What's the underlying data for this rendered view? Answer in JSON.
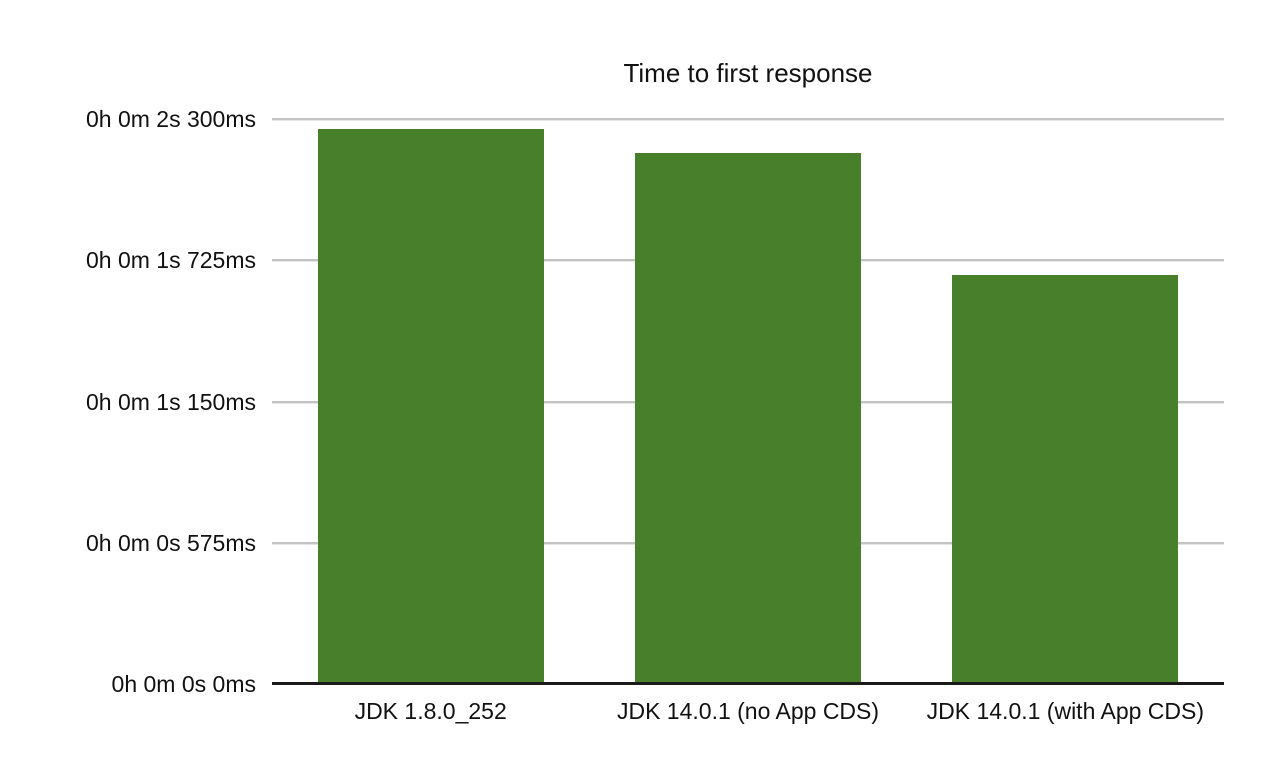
{
  "chart_data": {
    "type": "bar",
    "title": "Time to first response",
    "categories": [
      "JDK 1.8.0_252",
      "JDK 14.0.1 (no App CDS)",
      "JDK 14.0.1 (with App CDS)"
    ],
    "series": [
      {
        "name": "Time to first response",
        "values_ms": [
          2260,
          2160,
          1665
        ]
      }
    ],
    "y_ticks": [
      {
        "value_ms": 0,
        "label": "0h 0m 0s 0ms"
      },
      {
        "value_ms": 575,
        "label": "0h 0m 0s 575ms"
      },
      {
        "value_ms": 1150,
        "label": "0h 0m 1s 150ms"
      },
      {
        "value_ms": 1725,
        "label": "0h 0m 1s 725ms"
      },
      {
        "value_ms": 2300,
        "label": "0h 0m 2s 300ms"
      }
    ],
    "ylim_ms": [
      0,
      2300
    ],
    "xlabel": "",
    "ylabel": "",
    "grid": "horizontal",
    "legend": "none",
    "colors": {
      "bar": "#487f2a",
      "gridline": "#c4c4c4",
      "axis_line": "#1a1a1a",
      "text": "#111111",
      "background": "#ffffff"
    }
  }
}
